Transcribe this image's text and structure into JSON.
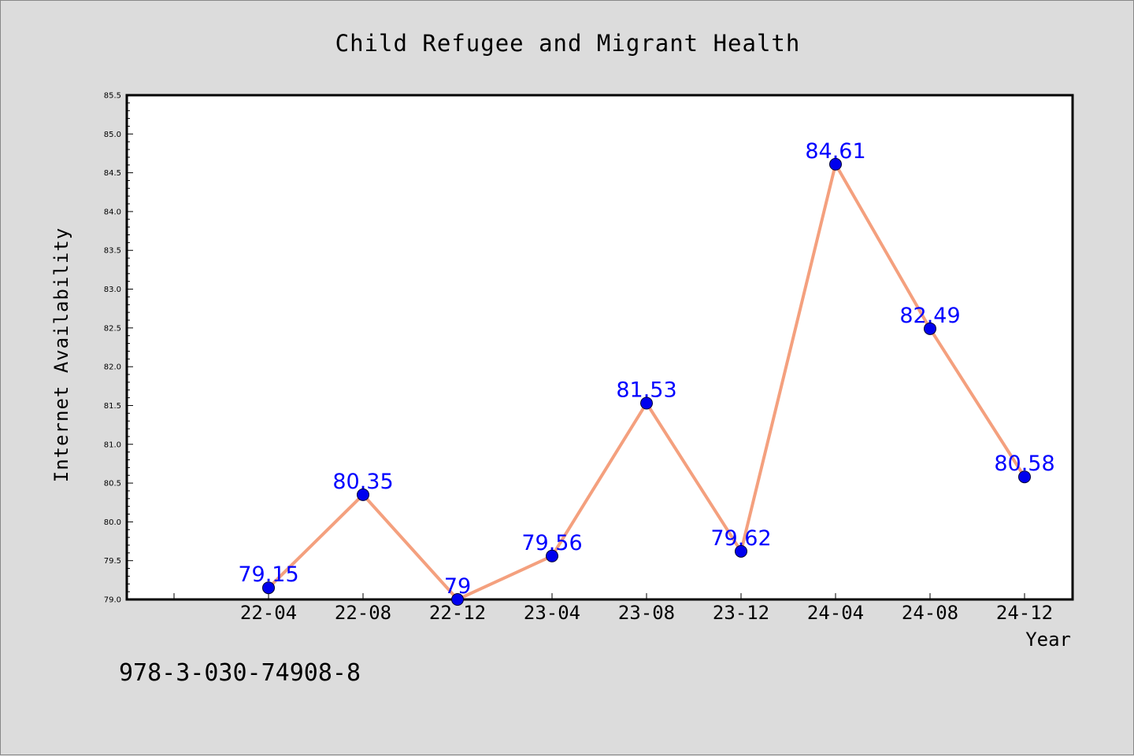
{
  "chart_data": {
    "type": "line",
    "title": "Child Refugee and Migrant Health",
    "xlabel": "Year",
    "ylabel": "Internet Availability",
    "categories": [
      "22-04",
      "22-08",
      "22-12",
      "23-04",
      "23-08",
      "23-12",
      "24-04",
      "24-08",
      "24-12"
    ],
    "values": [
      79.15,
      80.35,
      79,
      79.56,
      81.53,
      79.62,
      84.61,
      82.49,
      80.58
    ],
    "data_labels": [
      "79.15",
      "80.35",
      "79",
      "79.56",
      "81.53",
      "79.62",
      "84.61",
      "82.49",
      "80.58"
    ],
    "ylim": [
      79.0,
      85.5
    ],
    "yticks": [
      "79.0",
      "79.5",
      "80.0",
      "80.5",
      "81.0",
      "81.5",
      "82.0",
      "82.5",
      "83.0",
      "83.5",
      "84.0",
      "84.5",
      "85.0",
      "85.5"
    ],
    "grid": false,
    "colors": {
      "line": "#f4a07e",
      "marker": "#0000ee",
      "label": "#0000ff",
      "background": "#dcdcdc",
      "plot_background": "#ffffff"
    }
  },
  "footnote": "978-3-030-74908-8"
}
